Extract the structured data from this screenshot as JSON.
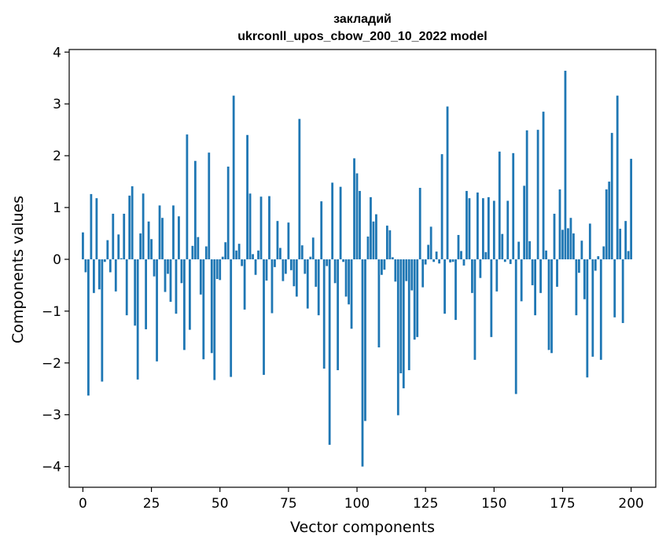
{
  "chart_data": {
    "type": "bar",
    "title_line1": "закладий",
    "title_line2": "ukrconll_upos_cbow_200_10_2022 model",
    "xlabel": "Vector components",
    "ylabel": "Components values",
    "xlim": [
      -5,
      209
    ],
    "ylim": [
      -4.4,
      4.05
    ],
    "x_ticks": [
      0,
      25,
      50,
      75,
      100,
      125,
      150,
      175,
      200
    ],
    "y_ticks": [
      -4,
      -3,
      -2,
      -1,
      0,
      1,
      2,
      3,
      4
    ],
    "x_tick_labels": [
      "0",
      "25",
      "50",
      "75",
      "100",
      "125",
      "150",
      "175",
      "200"
    ],
    "y_tick_labels": [
      "−4",
      "−3",
      "−2",
      "−1",
      "0",
      "1",
      "2",
      "3",
      "4"
    ],
    "bar_color": "#1f77b4",
    "values": [
      0.52,
      -0.25,
      -2.63,
      1.26,
      -0.65,
      1.18,
      -0.58,
      -2.36,
      -0.05,
      0.37,
      -0.25,
      0.88,
      -0.62,
      0.48,
      0.02,
      0.88,
      -1.08,
      1.23,
      1.41,
      -1.28,
      -2.32,
      0.5,
      1.27,
      -1.35,
      0.73,
      0.39,
      -0.33,
      -1.97,
      1.04,
      0.8,
      -0.63,
      -0.28,
      -0.82,
      1.04,
      -1.05,
      0.83,
      -0.46,
      -1.75,
      2.41,
      -1.36,
      0.26,
      1.9,
      0.43,
      -0.68,
      -1.93,
      0.25,
      2.06,
      -1.81,
      -2.33,
      -0.38,
      -0.4,
      0.05,
      0.33,
      1.79,
      -2.27,
      3.16,
      0.17,
      0.3,
      -0.13,
      -0.97,
      2.4,
      1.27,
      0.1,
      -0.3,
      0.17,
      1.21,
      -2.23,
      -0.41,
      1.22,
      -1.04,
      -0.15,
      0.74,
      0.22,
      -0.42,
      -0.28,
      0.71,
      -0.21,
      -0.52,
      -0.72,
      2.71,
      0.27,
      -0.28,
      -0.95,
      0.05,
      0.42,
      -0.53,
      -1.08,
      1.12,
      -2.11,
      -0.13,
      -3.58,
      1.48,
      -0.46,
      -2.14,
      1.4,
      -0.05,
      -0.72,
      -0.87,
      -1.34,
      1.95,
      1.66,
      1.32,
      -4.0,
      -3.12,
      0.44,
      1.2,
      0.73,
      0.87,
      -1.7,
      -0.3,
      -0.2,
      0.65,
      0.56,
      0.04,
      -0.43,
      -3.01,
      -2.2,
      -2.49,
      -0.42,
      -2.14,
      -0.6,
      -1.55,
      -1.5,
      1.38,
      -0.54,
      -0.1,
      0.28,
      0.63,
      -0.05,
      0.15,
      -0.08,
      2.03,
      -1.05,
      2.95,
      -0.06,
      -0.05,
      -1.17,
      0.47,
      0.16,
      -0.12,
      1.32,
      1.18,
      -0.65,
      -1.94,
      1.29,
      -0.36,
      1.18,
      0.14,
      1.2,
      -1.5,
      1.13,
      -0.62,
      2.08,
      0.49,
      -0.05,
      1.13,
      -0.09,
      2.05,
      -2.6,
      0.34,
      -0.81,
      1.42,
      2.49,
      0.35,
      -0.5,
      -1.08,
      2.5,
      -0.65,
      2.85,
      0.17,
      -1.75,
      -1.81,
      0.88,
      -0.53,
      1.35,
      0.57,
      3.64,
      0.6,
      0.8,
      0.5,
      -1.08,
      -0.26,
      0.36,
      -0.77,
      -2.28,
      0.69,
      -1.88,
      -0.22,
      0.06,
      -1.94,
      0.25,
      1.35,
      1.5,
      2.44,
      -1.12,
      3.16,
      0.59,
      -1.23,
      0.74,
      0.16,
      1.94
    ]
  }
}
